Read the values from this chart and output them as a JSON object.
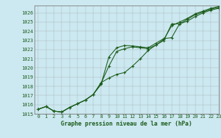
{
  "title": "Graphe pression niveau de la mer (hPa)",
  "background_color": "#cce8f0",
  "line_color": "#1a5c1a",
  "xlim": [
    -0.5,
    23
  ],
  "ylim": [
    1015,
    1026.8
  ],
  "xticks": [
    0,
    1,
    2,
    3,
    4,
    5,
    6,
    7,
    8,
    9,
    10,
    11,
    12,
    13,
    14,
    15,
    16,
    17,
    18,
    19,
    20,
    21,
    22,
    23
  ],
  "yticks": [
    1015,
    1016,
    1017,
    1018,
    1019,
    1020,
    1021,
    1022,
    1023,
    1024,
    1025,
    1026
  ],
  "series": [
    [
      1015.5,
      1015.8,
      1015.3,
      1015.2,
      1015.7,
      1016.1,
      1016.5,
      1017.1,
      1018.2,
      1021.2,
      1022.2,
      1022.45,
      1022.4,
      1022.3,
      1022.2,
      1022.7,
      1023.2,
      1023.3,
      1024.8,
      1025.1,
      1025.6,
      1026.0,
      1026.3,
      1026.5
    ],
    [
      1015.5,
      1015.8,
      1015.3,
      1015.2,
      1015.7,
      1016.1,
      1016.5,
      1017.1,
      1018.3,
      1020.2,
      1021.8,
      1022.1,
      1022.3,
      1022.2,
      1022.1,
      1022.5,
      1023.0,
      1024.8,
      1024.8,
      1025.3,
      1025.8,
      1026.1,
      1026.4,
      1026.6
    ],
    [
      1015.5,
      1015.8,
      1015.3,
      1015.2,
      1015.7,
      1016.1,
      1016.5,
      1017.1,
      1018.4,
      1018.9,
      1019.3,
      1019.5,
      1020.2,
      1021.0,
      1021.9,
      1022.5,
      1023.1,
      1024.6,
      1025.0,
      1025.4,
      1025.9,
      1026.2,
      1026.5,
      1026.7
    ]
  ],
  "marker": "+",
  "markersize": 3.5,
  "linewidth": 0.8,
  "grid_color": "#999999",
  "font_color": "#1a5c1a",
  "tick_fontsize": 5.0,
  "label_fontsize": 6.0
}
